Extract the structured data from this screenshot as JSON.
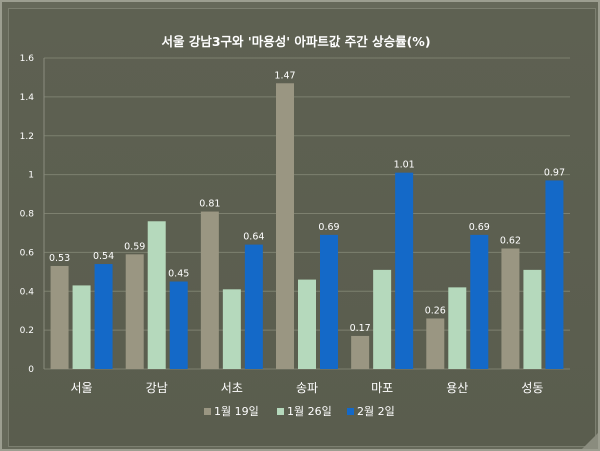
{
  "chart_data": {
    "type": "bar",
    "title": "서울 강남3구와 '마용성' 아파트값 주간 상승률(%)",
    "categories": [
      "서울",
      "강남",
      "서초",
      "송파",
      "마포",
      "용산",
      "성동"
    ],
    "series": [
      {
        "name": "1월 19일",
        "color": "#9a9682",
        "values": [
          0.53,
          0.59,
          0.81,
          1.47,
          0.17,
          0.26,
          0.62
        ],
        "labeled": true
      },
      {
        "name": "1월 26일",
        "color": "#b5d9bc",
        "values": [
          0.43,
          0.76,
          0.41,
          0.46,
          0.51,
          0.42,
          0.51
        ],
        "labeled": false
      },
      {
        "name": "2월 2일",
        "color": "#1469c8",
        "values": [
          0.54,
          0.45,
          0.64,
          0.69,
          1.01,
          0.69,
          0.97
        ],
        "labeled": true
      }
    ],
    "data_labels": [
      [
        "0.53",
        "0.59",
        "0.81",
        "1.47",
        "0.17",
        "0.26",
        "0.62"
      ],
      [],
      [
        "0.54",
        "0.45",
        "0.64",
        "0.69",
        "1.01",
        "0.69",
        "0.97"
      ]
    ],
    "yticks": [
      "0",
      "0.2",
      "0.4",
      "0.6",
      "0.8",
      "1",
      "1.2",
      "1.4",
      "1.6"
    ],
    "ylim": [
      0,
      1.6
    ],
    "grid": true,
    "legend_position": "bottom",
    "xlabel": "",
    "ylabel": ""
  }
}
